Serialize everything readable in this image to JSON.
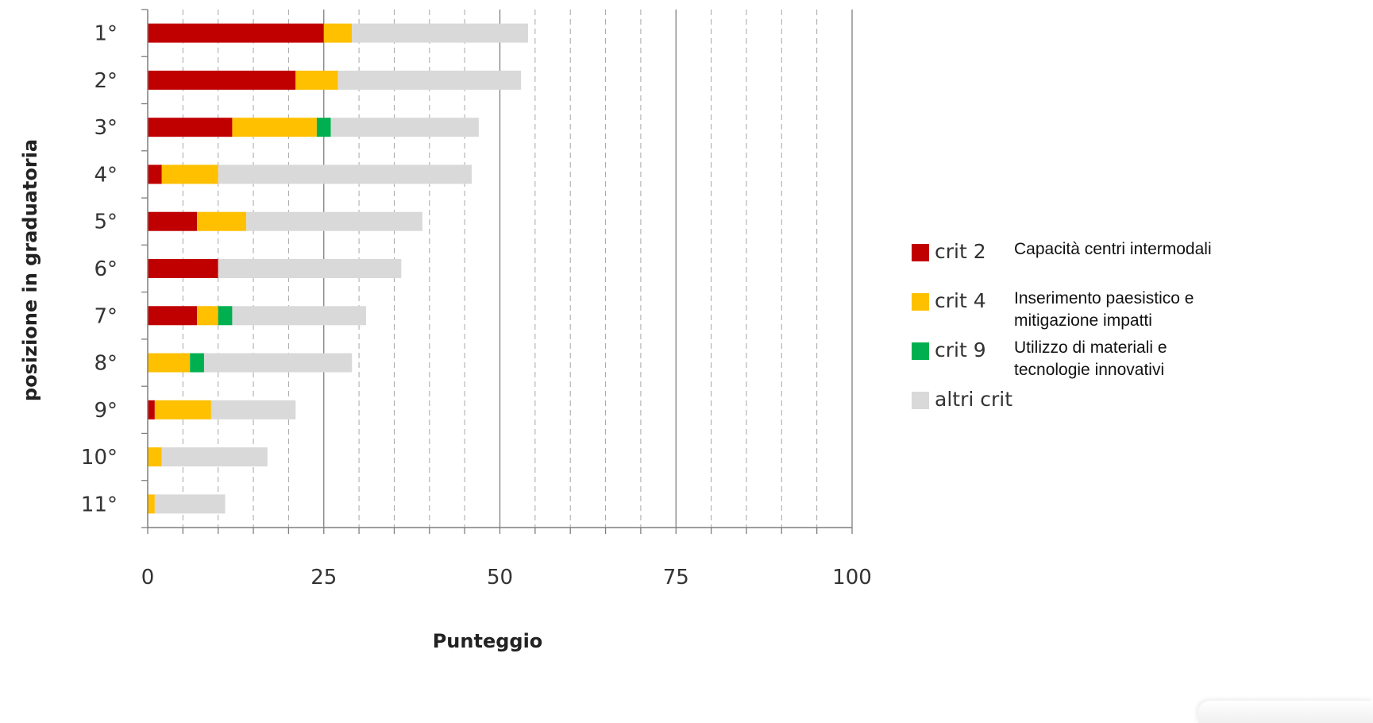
{
  "chart_data": {
    "type": "bar",
    "orientation": "horizontal",
    "stacked": true,
    "categories": [
      "1°",
      "2°",
      "3°",
      "4°",
      "5°",
      "6°",
      "7°",
      "8°",
      "9°",
      "10°",
      "11°"
    ],
    "series": [
      {
        "name": "crit 2",
        "description": "Capacità centri intermodali",
        "color": "#C00000",
        "values": [
          25,
          21,
          12,
          2,
          7,
          10,
          7,
          0,
          1,
          0,
          0
        ]
      },
      {
        "name": "crit 4",
        "description": "Inserimento paesistico e mitigazione impatti",
        "color": "#FFC000",
        "values": [
          4,
          6,
          12,
          8,
          7,
          0,
          3,
          6,
          8,
          2,
          1
        ]
      },
      {
        "name": "crit 9",
        "description": "Utilizzo di materiali e tecnologie innovativi",
        "color": "#00B050",
        "values": [
          0,
          0,
          2,
          0,
          0,
          0,
          2,
          2,
          0,
          0,
          0
        ]
      },
      {
        "name": "altri crit",
        "description": "",
        "color": "#D9D9D9",
        "values": [
          25,
          26,
          21,
          36,
          25,
          26,
          19,
          21,
          12,
          15,
          10
        ]
      }
    ],
    "xlabel": "Punteggio",
    "ylabel": "posizione in graduatoria",
    "xlim": [
      0,
      100
    ],
    "xticks": [
      "0",
      "25",
      "50",
      "75",
      "100"
    ],
    "grid": {
      "major_solid_every": 25,
      "minor_dashed_every": 5
    },
    "legend_position": "right"
  }
}
